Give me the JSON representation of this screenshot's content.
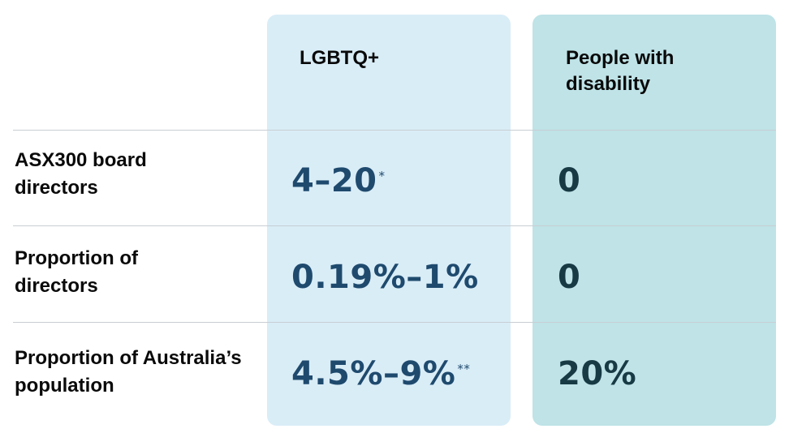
{
  "colors": {
    "lgbtq_column_bg": "#d9edf7",
    "disability_column_bg": "#bfe3e7",
    "lgbtq_value_text": "#1f4a6e",
    "disability_value_text": "#173a44",
    "rule": "#c8ced3"
  },
  "columns": {
    "lgbtq": {
      "heading": "LGBTQ+"
    },
    "disability": {
      "heading": "People with disability"
    }
  },
  "rows": [
    {
      "label": "ASX300 board directors",
      "lgbtq": {
        "value": "4–20",
        "note": "*"
      },
      "disability": {
        "value": "0"
      }
    },
    {
      "label": "Proportion of directors",
      "lgbtq": {
        "value": "0.19%–1%",
        "note": ""
      },
      "disability": {
        "value": "0"
      }
    },
    {
      "label": "Proportion of Australia’s population",
      "lgbtq": {
        "value": "4.5%–9%",
        "note": "**"
      },
      "disability": {
        "value": "20%"
      }
    }
  ]
}
